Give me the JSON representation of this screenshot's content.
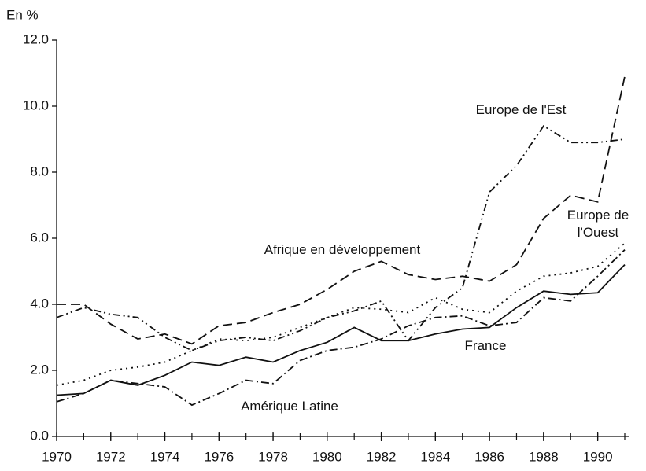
{
  "chart_data": {
    "type": "line",
    "y_label": "En %",
    "x": [
      1970,
      1971,
      1972,
      1973,
      1974,
      1975,
      1976,
      1977,
      1978,
      1979,
      1980,
      1981,
      1982,
      1983,
      1984,
      1985,
      1986,
      1987,
      1988,
      1989,
      1990,
      1991
    ],
    "xlim": [
      1970,
      1991
    ],
    "xticks": [
      1970,
      1972,
      1974,
      1976,
      1978,
      1980,
      1982,
      1984,
      1986,
      1988,
      1990
    ],
    "ylim": [
      0,
      12
    ],
    "yticks": [
      {
        "value": 0,
        "label": "0.0"
      },
      {
        "value": 2,
        "label": "2.0"
      },
      {
        "value": 4,
        "label": "4.0"
      },
      {
        "value": 6,
        "label": "6.0"
      },
      {
        "value": 8,
        "label": "8.0"
      },
      {
        "value": 10,
        "label": "10.0"
      },
      {
        "value": 12,
        "label": "12.0"
      }
    ],
    "series": [
      {
        "name": "Europe de l'Est",
        "color": "#111111",
        "dash": "9,4,2,4,2,4",
        "values": [
          3.6,
          3.9,
          3.7,
          3.6,
          3.0,
          2.6,
          2.9,
          3.0,
          2.9,
          3.2,
          3.6,
          3.8,
          4.1,
          2.9,
          3.9,
          4.5,
          7.4,
          8.2,
          9.4,
          8.9,
          8.9,
          9.0
        ]
      },
      {
        "name": "Afrique en développement",
        "color": "#111111",
        "dash": "12,6",
        "values": [
          4.0,
          4.0,
          3.4,
          2.95,
          3.1,
          2.8,
          3.35,
          3.45,
          3.75,
          4.0,
          4.45,
          5.0,
          5.3,
          4.9,
          4.75,
          4.85,
          4.7,
          5.2,
          6.6,
          7.3,
          7.1,
          10.9
        ]
      },
      {
        "name": "Europe de l'Ouest",
        "color": "#111111",
        "dash": "2,5",
        "values": [
          1.55,
          1.7,
          2.0,
          2.1,
          2.25,
          2.6,
          2.95,
          2.9,
          3.0,
          3.3,
          3.6,
          3.9,
          3.85,
          3.75,
          4.2,
          3.85,
          3.75,
          4.4,
          4.85,
          4.95,
          5.15,
          5.85
        ]
      },
      {
        "name": "France",
        "color": "#111111",
        "dash": "none",
        "values": [
          1.25,
          1.3,
          1.7,
          1.55,
          1.85,
          2.25,
          2.15,
          2.4,
          2.25,
          2.6,
          2.85,
          3.3,
          2.9,
          2.9,
          3.1,
          3.25,
          3.3,
          3.9,
          4.4,
          4.3,
          4.35,
          5.2
        ]
      },
      {
        "name": "Amérique Latine",
        "color": "#111111",
        "dash": "10,4,2,4",
        "values": [
          1.05,
          1.3,
          1.7,
          1.6,
          1.5,
          0.95,
          1.3,
          1.7,
          1.6,
          2.3,
          2.6,
          2.7,
          2.95,
          3.35,
          3.6,
          3.65,
          3.35,
          3.45,
          4.2,
          4.1,
          4.85,
          5.65
        ]
      }
    ]
  }
}
